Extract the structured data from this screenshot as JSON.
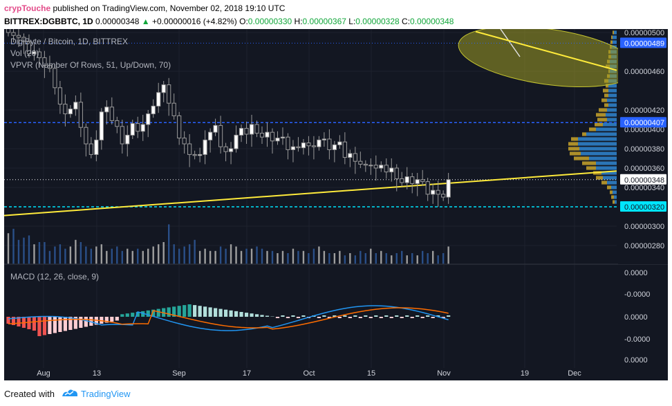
{
  "header": {
    "author": "crypTouche",
    "published": "published on TradingView.com, November 02, 2018 19:10 UTC",
    "symbol_label": "BITTREX:DGBBTC, 1D",
    "close_value": "0.00000348",
    "up_arrow": "▲",
    "change": "+0.00000016 (+4.82%)",
    "o_label": "O:",
    "o_value": "0.00000330",
    "h_label": "H:",
    "h_value": "0.00000367",
    "l_label": "L:",
    "l_value": "0.00000328",
    "c_label": "C:",
    "c_value": "0.00000348"
  },
  "legend": {
    "title": "DigiByte / Bitcoin, 1D, BITTREX",
    "vol": "Vol (20)",
    "vpvr": "VPVR (Number Of Rows, 51, Up/Down, 70)",
    "macd": "MACD (12, 26, close, 9)"
  },
  "price_axis": {
    "ticks": [
      "0.00000500",
      "0.00000460",
      "0.00000420",
      "0.00000400",
      "0.00000380",
      "0.00000360",
      "0.00000340",
      "0.00000300",
      "0.00000280"
    ],
    "tags": [
      {
        "text": "0.00000489",
        "value": 489,
        "color": "#2962ff",
        "text_color": "#ffffff"
      },
      {
        "text": "0.00000407",
        "value": 407,
        "color": "#2962ff",
        "text_color": "#ffffff"
      },
      {
        "text": "0.00000348",
        "value": 348,
        "color": "#ffffff",
        "text_color": "#131722"
      },
      {
        "text": "0.00000320",
        "value": 320,
        "color": "#00e5ff",
        "text_color": "#131722"
      }
    ]
  },
  "macd_axis": {
    "ticks": [
      "0.0000",
      "-0.0000",
      "0.0000",
      "-0.0000",
      "0.0000"
    ]
  },
  "time_axis": {
    "labels": [
      "Aug",
      "13",
      "Sep",
      "17",
      "Oct",
      "15",
      "Nov",
      "19",
      "Dec"
    ]
  },
  "chart_data": {
    "type": "candlestick",
    "title": "DigiByte / Bitcoin, 1D, BITTREX",
    "price_range": [
      2.6e-06,
      5e-06
    ],
    "horizontal_lines": [
      {
        "value": 4.89e-06,
        "style": "dotted",
        "color": "#2962ff"
      },
      {
        "value": 4.07e-06,
        "style": "dashed",
        "color": "#2962ff"
      },
      {
        "value": 3.48e-06,
        "style": "dotted",
        "color": "#ffffff"
      },
      {
        "value": 3.2e-06,
        "style": "dashed",
        "color": "#00e5ff"
      }
    ],
    "trendline_support": {
      "color": "#ffeb3b",
      "from": [
        "Jul 25",
        3.11e-06
      ],
      "to": [
        "Dec 7",
        3.57e-06
      ]
    },
    "trendline_resistance": {
      "color": "#ffeb3b",
      "from": [
        "Nov 13",
        5.01e-06
      ],
      "to": [
        "Dec 7",
        4.61e-06
      ]
    },
    "ellipse": {
      "fill": "#9e9d24",
      "center": [
        "Nov 28",
        4.75e-06
      ],
      "note": "highlighted zone"
    },
    "closes": [
      500,
      497,
      495,
      491,
      478,
      480,
      474,
      466,
      463,
      443,
      426,
      416,
      421,
      428,
      402,
      385,
      374,
      389,
      418,
      423,
      409,
      403,
      385,
      394,
      406,
      398,
      405,
      416,
      424,
      438,
      446,
      427,
      414,
      391,
      385,
      374,
      373,
      374,
      389,
      397,
      404,
      382,
      377,
      380,
      394,
      401,
      395,
      405,
      396,
      392,
      397,
      388,
      391,
      392,
      379,
      382,
      381,
      386,
      383,
      382,
      389,
      390,
      379,
      384,
      387,
      371,
      375,
      367,
      364,
      363,
      363,
      360,
      363,
      356,
      360,
      349,
      345,
      351,
      344,
      348,
      346,
      333,
      337,
      333,
      330,
      348
    ],
    "volume": [
      1.4,
      1.6,
      1.1,
      1.2,
      1.3,
      0.9,
      1.0,
      1.0,
      0.6,
      0.8,
      0.9,
      0.7,
      0.8,
      1.1,
      1.0,
      0.8,
      0.7,
      0.8,
      0.9,
      0.6,
      0.7,
      0.8,
      0.6,
      0.7,
      0.6,
      0.7,
      0.6,
      0.7,
      0.8,
      0.9,
      1.0,
      1.8,
      0.9,
      0.7,
      0.8,
      0.9,
      1.1,
      0.6,
      0.7,
      0.6,
      0.6,
      0.8,
      0.7,
      0.9,
      0.8,
      0.6,
      0.7,
      0.7,
      0.8,
      0.7,
      0.6,
      0.6,
      0.5,
      0.6,
      0.5,
      0.7,
      0.6,
      0.6,
      0.5,
      0.7,
      0.8,
      0.6,
      0.5,
      0.5,
      0.6,
      0.4,
      0.5,
      0.4,
      0.6,
      0.5,
      0.7,
      0.5,
      0.6,
      0.5,
      0.4,
      0.5,
      0.6,
      0.4,
      0.5,
      0.4,
      0.6,
      0.5,
      0.6,
      0.4,
      0.5,
      0.8
    ]
  }
}
